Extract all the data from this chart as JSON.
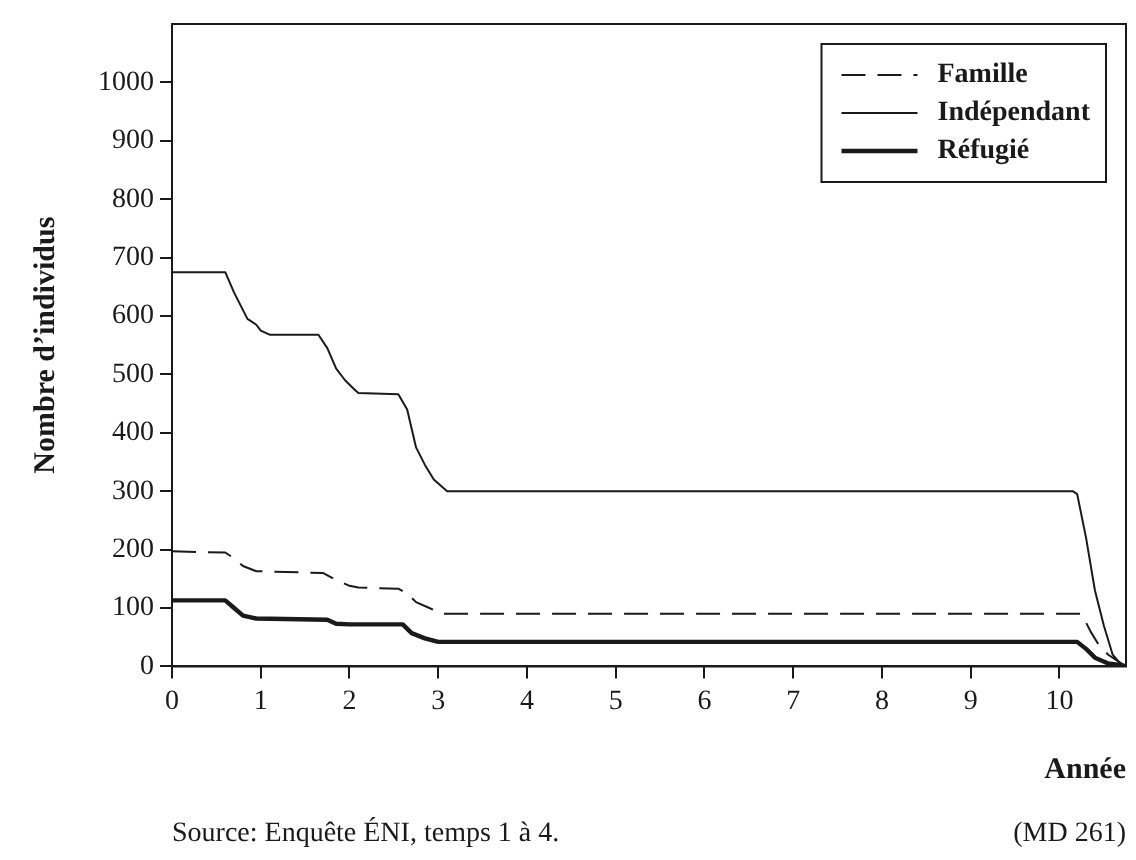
{
  "chart_data": {
    "type": "line",
    "xlabel": "Année",
    "ylabel": "Nombre d’individus",
    "annotations": [
      "Source: Enquête ÉNI, temps 1 à 4.",
      "(MD 261)"
    ],
    "xlim": [
      0,
      10.75
    ],
    "xticks": [
      0,
      1,
      2,
      3,
      4,
      5,
      6,
      7,
      8,
      9,
      10
    ],
    "ylim": [
      0,
      1100
    ],
    "yticks": [
      0,
      100,
      200,
      300,
      400,
      500,
      600,
      700,
      800,
      900,
      1000
    ],
    "grid": false,
    "legend": "top right",
    "marker": "none",
    "series": [
      {
        "name": "Famille",
        "color": "#1a1a1a",
        "line_style": "dashed",
        "x": [
          0,
          0.6,
          0.7,
          0.8,
          0.95,
          1.7,
          1.85,
          2.0,
          2.1,
          2.55,
          2.65,
          2.75,
          2.9,
          3.05,
          10.25,
          10.35,
          10.45,
          10.55,
          10.65,
          10.75
        ],
        "values": [
          197,
          195,
          185,
          172,
          163,
          160,
          148,
          138,
          135,
          133,
          125,
          110,
          100,
          90,
          90,
          60,
          35,
          20,
          10,
          0
        ]
      },
      {
        "name": "Indépendant",
        "color": "#1a1a1a",
        "line_style": "solid",
        "x": [
          0,
          0.6,
          0.7,
          0.85,
          0.95,
          1.0,
          1.1,
          1.65,
          1.75,
          1.85,
          1.95,
          2.05,
          2.1,
          2.55,
          2.65,
          2.75,
          2.85,
          2.95,
          3.1,
          10.15,
          10.2,
          10.3,
          10.4,
          10.5,
          10.6,
          10.7,
          10.75
        ],
        "values": [
          675,
          675,
          640,
          595,
          585,
          575,
          568,
          568,
          545,
          510,
          490,
          475,
          468,
          466,
          440,
          375,
          345,
          320,
          300,
          300,
          295,
          220,
          130,
          70,
          20,
          2,
          0
        ]
      },
      {
        "name": "Réfugié",
        "color": "#1a1a1a",
        "line_style": "solid",
        "x": [
          0,
          0.6,
          0.7,
          0.8,
          0.95,
          1.75,
          1.85,
          2.0,
          2.6,
          2.7,
          2.85,
          3.0,
          10.2,
          10.3,
          10.4,
          10.55,
          10.7,
          10.75
        ],
        "values": [
          113,
          113,
          100,
          87,
          82,
          80,
          73,
          72,
          72,
          57,
          48,
          42,
          42,
          30,
          15,
          5,
          2,
          0
        ]
      }
    ]
  }
}
